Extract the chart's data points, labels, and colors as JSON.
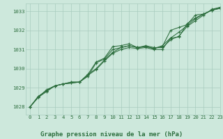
{
  "title": "Graphe pression niveau de la mer (hPa)",
  "background_color": "#cde8dc",
  "grid_color": "#a8ccbe",
  "line_color": "#2d6e3e",
  "xlim": [
    -0.5,
    23
  ],
  "ylim": [
    1027.6,
    1033.4
  ],
  "yticks": [
    1028,
    1029,
    1030,
    1031,
    1032,
    1033
  ],
  "xticks": [
    0,
    1,
    2,
    3,
    4,
    5,
    6,
    7,
    8,
    9,
    10,
    11,
    12,
    13,
    14,
    15,
    16,
    17,
    18,
    19,
    20,
    21,
    22,
    23
  ],
  "series": [
    [
      1028.0,
      1028.5,
      1028.8,
      1029.1,
      1029.2,
      1029.3,
      1029.3,
      1029.6,
      1030.3,
      1030.5,
      1031.0,
      1031.1,
      1031.2,
      1031.1,
      1031.2,
      1031.1,
      1031.1,
      1031.5,
      1031.7,
      1032.2,
      1032.5,
      1032.8,
      1033.1,
      1033.2
    ],
    [
      1028.0,
      1028.5,
      1028.9,
      1029.1,
      1029.2,
      1029.3,
      1029.3,
      1029.65,
      1029.95,
      1030.4,
      1030.8,
      1031.0,
      1031.1,
      1031.05,
      1031.1,
      1031.0,
      1031.0,
      1031.6,
      1031.9,
      1032.25,
      1032.6,
      1032.85,
      1033.05,
      1033.2
    ],
    [
      1028.0,
      1028.55,
      1028.85,
      1029.1,
      1029.2,
      1029.25,
      1029.3,
      1029.7,
      1030.0,
      1030.45,
      1030.85,
      1031.1,
      1031.2,
      1031.1,
      1031.15,
      1031.05,
      1031.15,
      1032.0,
      1032.15,
      1032.3,
      1032.8,
      1032.85,
      1033.05,
      1033.15
    ],
    [
      1028.0,
      1028.55,
      1028.85,
      1029.1,
      1029.2,
      1029.25,
      1029.3,
      1029.7,
      1030.35,
      1030.55,
      1031.15,
      1031.2,
      1031.3,
      1031.1,
      1031.15,
      1031.05,
      1031.2,
      1031.6,
      1031.65,
      1032.35,
      1032.65,
      1032.85,
      1033.05,
      1033.15
    ]
  ]
}
